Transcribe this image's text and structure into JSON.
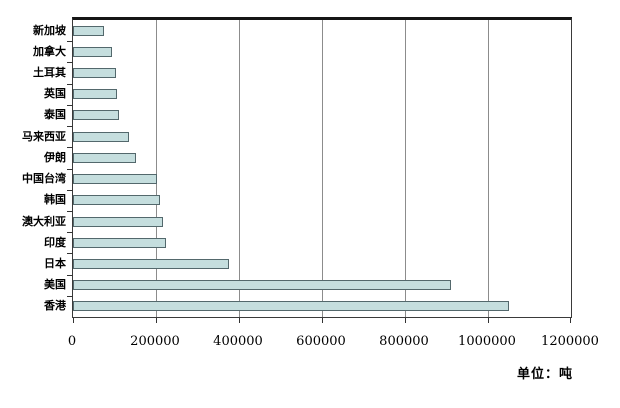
{
  "chart_data": {
    "type": "bar",
    "orientation": "horizontal",
    "title": "",
    "categories": [
      "新加坡",
      "加拿大",
      "土耳其",
      "英国",
      "泰国",
      "马来西亚",
      "伊朗",
      "中国台湾",
      "韩国",
      "澳大利亚",
      "印度",
      "日本",
      "美国",
      "香港"
    ],
    "category_slugs": [
      "singapore",
      "canada",
      "turkey",
      "uk",
      "thailand",
      "malaysia",
      "iran",
      "taiwan-china",
      "south-korea",
      "australia",
      "india",
      "japan",
      "usa",
      "hong-kong"
    ],
    "category_order": "top-to-bottom",
    "values": [
      75000,
      94000,
      104000,
      107000,
      112000,
      135000,
      152000,
      202000,
      210000,
      217000,
      224000,
      377000,
      910000,
      1050000
    ],
    "xlabel": "",
    "ylabel": "",
    "xlim": [
      0,
      1200000
    ],
    "x_ticks": [
      0,
      200000,
      400000,
      600000,
      800000,
      1000000,
      1200000
    ],
    "x_tick_labels": [
      "0",
      "200000",
      "400000",
      "600000",
      "800000",
      "1000000",
      "1200000"
    ],
    "grid": "vertical gridlines on",
    "legend": "none",
    "unit_note": "单位：吨",
    "colors": {
      "bar_fill": "#c5dede",
      "bar_border": "#53686c",
      "gridline": "#8c8c8c",
      "plot_border": "#161616",
      "text": "#000000",
      "background": "#ffffff"
    }
  }
}
